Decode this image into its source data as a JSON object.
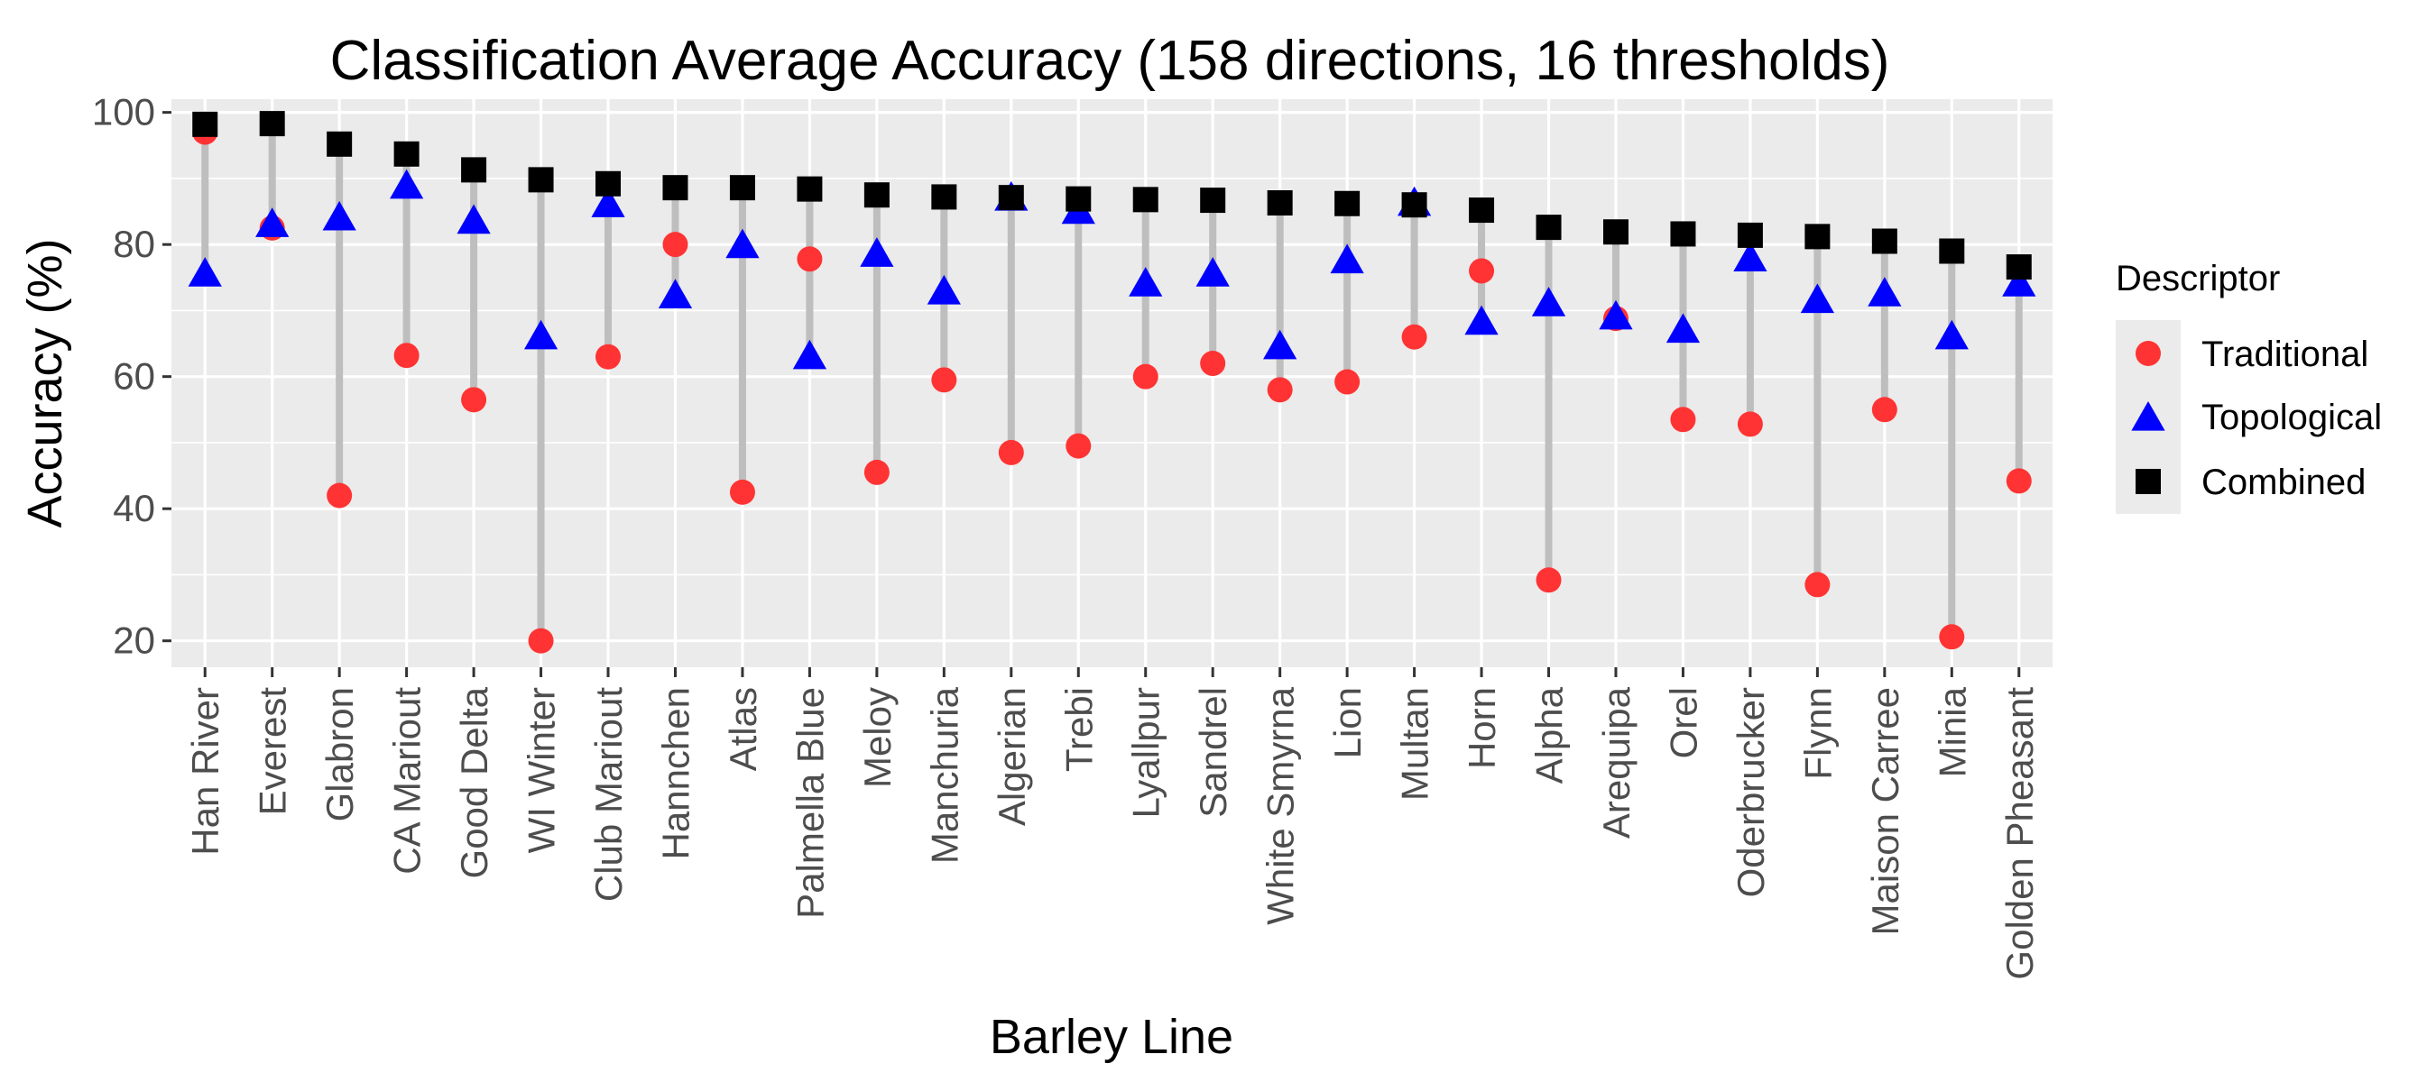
{
  "chart_data": {
    "type": "scatter",
    "title": "Classification Average Accuracy (158 directions, 16 thresholds)",
    "xlabel": "Barley Line",
    "ylabel": "Accuracy (%)",
    "ylim": [
      16,
      102
    ],
    "yticks": [
      20,
      40,
      60,
      80,
      100
    ],
    "grid": true,
    "legend": {
      "title": "Descriptor",
      "position": "right"
    },
    "categories": [
      "Han River",
      "Everest",
      "Glabron",
      "CA Mariout",
      "Good Delta",
      "WI Winter",
      "Club Mariout",
      "Hannchen",
      "Atlas",
      "Palmella Blue",
      "Meloy",
      "Manchuria",
      "Algerian",
      "Trebi",
      "Lyallpur",
      "Sandrel",
      "White Smyrna",
      "Lion",
      "Multan",
      "Horn",
      "Alpha",
      "Arequipa",
      "Orel",
      "Oderbrucker",
      "Flynn",
      "Maison Carree",
      "Minia",
      "Golden Pheasant"
    ],
    "series": [
      {
        "name": "Traditional",
        "marker": "circle",
        "color": "#ff3333",
        "values": [
          97,
          82.5,
          42,
          63.2,
          56.5,
          20,
          63,
          80,
          42.5,
          77.8,
          45.5,
          59.5,
          48.5,
          49.5,
          60,
          62,
          58,
          59.2,
          66,
          76,
          29.2,
          68.8,
          53.5,
          52.8,
          28.5,
          55,
          20.6,
          44.2
        ]
      },
      {
        "name": "Topological",
        "marker": "triangle",
        "color": "#0000ff",
        "values": [
          75.5,
          83,
          84,
          88.8,
          83.5,
          66,
          86,
          72.2,
          79.8,
          63,
          78.5,
          72.8,
          87,
          85,
          74,
          75.5,
          64.5,
          77.5,
          86.2,
          68.2,
          71,
          69,
          67,
          77.8,
          71.5,
          72.5,
          66,
          74
        ]
      },
      {
        "name": "Combined",
        "marker": "square",
        "color": "#000000",
        "values": [
          98.2,
          98.3,
          95.2,
          93.7,
          91.3,
          89.8,
          89.2,
          88.6,
          88.6,
          88.4,
          87.5,
          87.2,
          87.1,
          86.9,
          86.8,
          86.7,
          86.3,
          86.2,
          86,
          85.2,
          82.6,
          81.9,
          81.6,
          81.4,
          81.2,
          80.5,
          79,
          76.6
        ]
      }
    ]
  }
}
